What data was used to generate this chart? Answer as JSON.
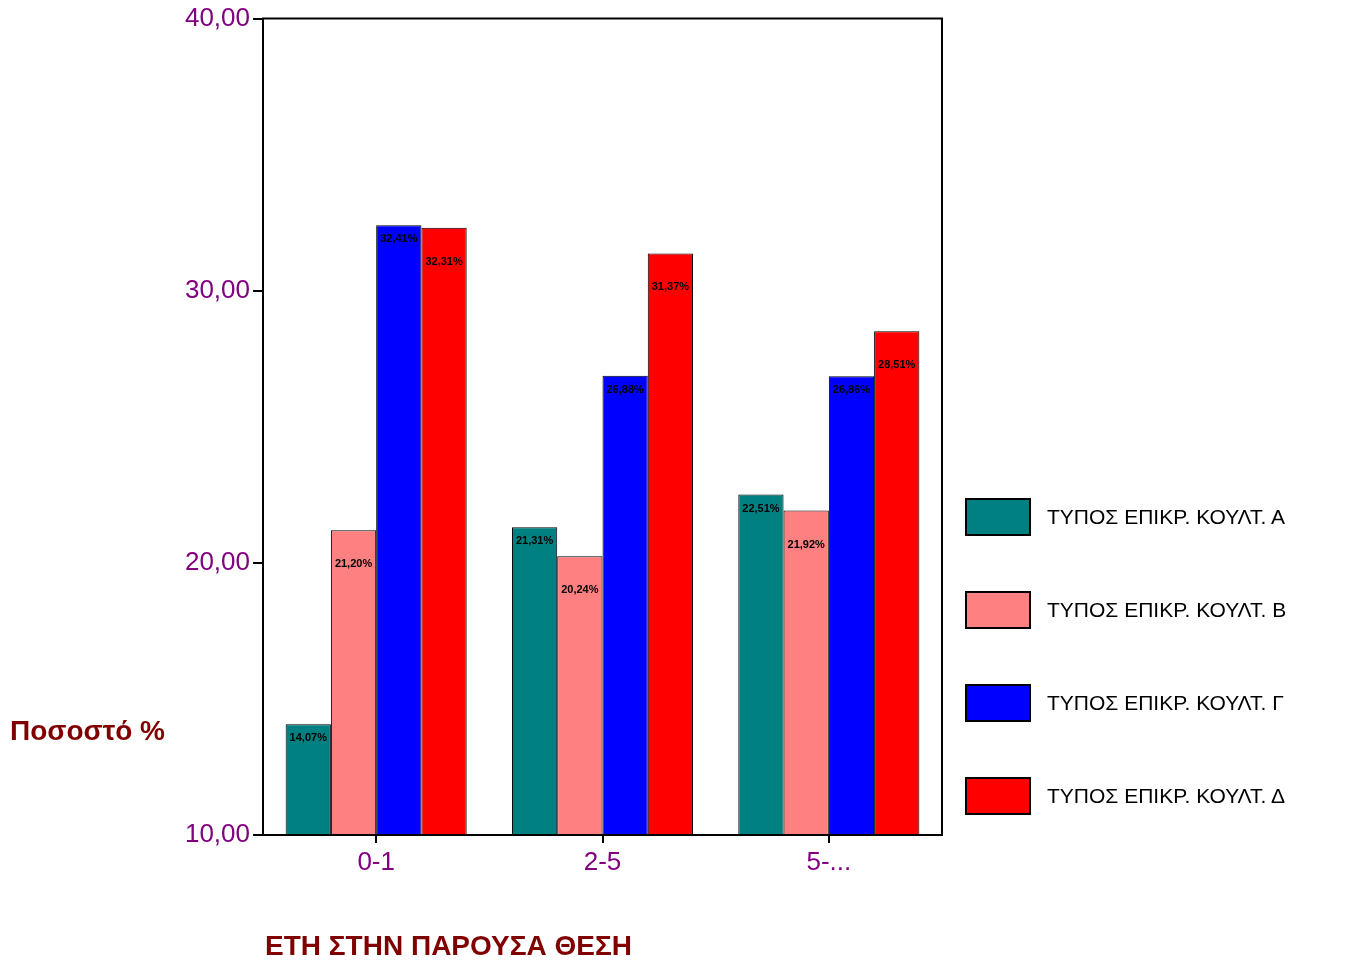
{
  "chart_data": {
    "type": "bar",
    "xlabel": "ΕΤΗ ΣΤΗΝ ΠΑΡΟΥΣΑ ΘΕΣΗ",
    "ylabel": "Ποσοστό %",
    "categories": [
      "0-1",
      "2-5",
      "5-..."
    ],
    "series": [
      {
        "name": "ΤΥΠΟΣ ΕΠΙΚΡ. ΚΟΥΛΤ. Α",
        "color": "#008080",
        "values": [
          14.07,
          21.31,
          22.51
        ],
        "value_labels": [
          "14,07%",
          "21,31%",
          "22,51%"
        ]
      },
      {
        "name": "ΤΥΠΟΣ ΕΠΙΚΡ. ΚΟΥΛΤ. Β",
        "color": "#ff8080",
        "values": [
          21.2,
          20.24,
          21.92
        ],
        "value_labels": [
          "21,20%",
          "20,24%",
          "21,92%"
        ]
      },
      {
        "name": "ΤΥΠΟΣ ΕΠΙΚΡ. ΚΟΥΛΤ. Γ",
        "color": "#0000ff",
        "values": [
          32.41,
          26.88,
          26.86
        ],
        "value_labels": [
          "32,41%",
          "26,88%",
          "26,86%"
        ]
      },
      {
        "name": "ΤΥΠΟΣ ΕΠΙΚΡ. ΚΟΥΛΤ. Δ",
        "color": "#ff0000",
        "values": [
          32.31,
          31.37,
          28.51
        ],
        "value_labels": [
          "32,31%",
          "31,37%",
          "28,51%"
        ]
      }
    ],
    "ylim": [
      10,
      40
    ],
    "yticks": [
      {
        "value": 10,
        "label": "10,00"
      },
      {
        "value": 20,
        "label": "20,00"
      },
      {
        "value": 30,
        "label": "30,00"
      },
      {
        "value": 40,
        "label": "40,00"
      }
    ],
    "grid": false,
    "legend": "right"
  }
}
